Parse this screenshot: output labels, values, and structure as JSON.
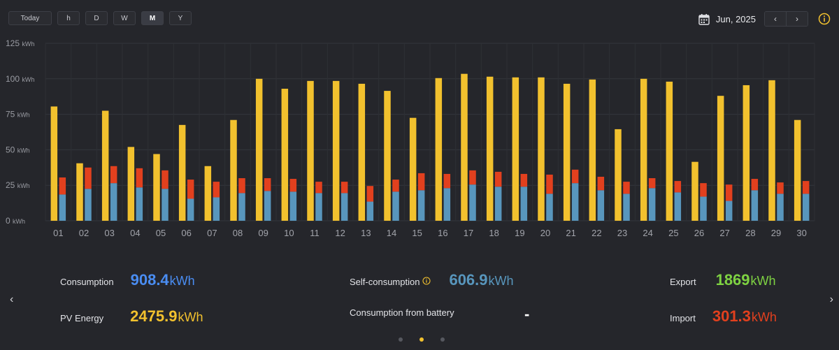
{
  "toolbar": {
    "today": "Today",
    "periods": [
      "h",
      "D",
      "W",
      "M",
      "Y"
    ],
    "active_period": "M"
  },
  "date": {
    "label": "Jun, 2025",
    "prev_icon": "chevron-left-icon",
    "next_icon": "chevron-right-icon",
    "info_icon": "info-icon",
    "calendar_icon": "calendar-icon"
  },
  "colors": {
    "pv": "#f2c12e",
    "self_consumption": "#5896bd",
    "import": "#e2401e",
    "export": "#7ed242",
    "consumption": "#4a8df2"
  },
  "chart_data": {
    "type": "bar",
    "ylim": [
      0,
      125
    ],
    "yticks": [
      0,
      25,
      50,
      75,
      100,
      125
    ],
    "yunit": "kWh",
    "categories": [
      "01",
      "02",
      "03",
      "04",
      "05",
      "06",
      "07",
      "08",
      "09",
      "10",
      "11",
      "12",
      "13",
      "14",
      "15",
      "16",
      "17",
      "18",
      "19",
      "20",
      "21",
      "22",
      "23",
      "24",
      "25",
      "26",
      "27",
      "28",
      "29",
      "30"
    ],
    "series": [
      {
        "key": "pv",
        "values": [
          80.5,
          40.5,
          77.5,
          52,
          47,
          67.5,
          38.5,
          71,
          100,
          93,
          98.5,
          98.5,
          96.5,
          91.5,
          72.5,
          100.5,
          103.5,
          101.5,
          101,
          101,
          96.5,
          99.5,
          64.5,
          100,
          98,
          41.5,
          88,
          95.5,
          99,
          71
        ]
      },
      {
        "key": "self_consumption",
        "values": [
          18.5,
          22.5,
          26.5,
          23.5,
          22.5,
          15.5,
          16.5,
          19.5,
          21,
          20.5,
          19.5,
          19.5,
          13.5,
          20.5,
          21.5,
          23,
          25.5,
          24,
          24,
          19,
          26.5,
          21.5,
          19,
          23,
          20,
          17,
          14,
          21.5,
          19,
          19
        ]
      },
      {
        "key": "import",
        "values": [
          12,
          15,
          12,
          13.5,
          13,
          13.5,
          11,
          10.5,
          9,
          9,
          8,
          8,
          11,
          8.5,
          12,
          10,
          10,
          10.5,
          9,
          13.5,
          9.5,
          9.5,
          8.5,
          7,
          8,
          9.5,
          11.5,
          8,
          8,
          9
        ]
      }
    ]
  },
  "summary": {
    "consumption": {
      "label": "Consumption",
      "value": "908.4",
      "unit": "kWh"
    },
    "pv_energy": {
      "label": "PV Energy",
      "value": "2475.9",
      "unit": "kWh"
    },
    "self_consumption": {
      "label": "Self-consumption",
      "value": "606.9",
      "unit": "kWh"
    },
    "battery": {
      "label": "Consumption from battery",
      "value": "-"
    },
    "export": {
      "label": "Export",
      "value": "1869",
      "unit": "kWh"
    },
    "import": {
      "label": "Import",
      "value": "301.3",
      "unit": "kWh"
    }
  },
  "pager": {
    "count": 3,
    "active": 1
  }
}
